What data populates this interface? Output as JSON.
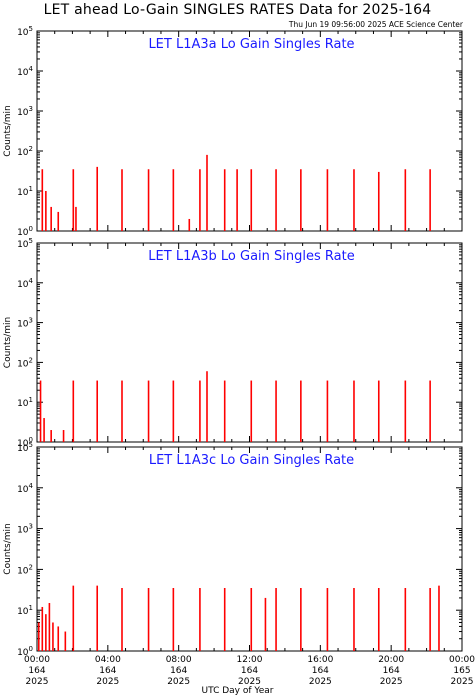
{
  "title": "LET ahead Lo-Gain SINGLES RATES Data for 2025-164",
  "timestamp": "Thu Jun 19 09:56:00 2025 ACE Science Center",
  "colors": {
    "data": "#ff0000",
    "panel_title": "#1a1aff",
    "axis": "#000000"
  },
  "chart_data": [
    {
      "type": "bar",
      "title": "LET L1A3a Lo Gain Singles Rate",
      "ylabel": "Counts/min",
      "yscale": "log",
      "ylim": [
        1,
        100000
      ],
      "xlim_hours": [
        0,
        24
      ],
      "spikes": [
        {
          "x": 0.3,
          "y": 35
        },
        {
          "x": 0.5,
          "y": 10
        },
        {
          "x": 0.8,
          "y": 4
        },
        {
          "x": 1.2,
          "y": 3
        },
        {
          "x": 2.05,
          "y": 35
        },
        {
          "x": 2.2,
          "y": 4
        },
        {
          "x": 3.4,
          "y": 40
        },
        {
          "x": 4.8,
          "y": 35
        },
        {
          "x": 6.3,
          "y": 35
        },
        {
          "x": 7.7,
          "y": 35
        },
        {
          "x": 8.6,
          "y": 2
        },
        {
          "x": 9.2,
          "y": 35
        },
        {
          "x": 9.6,
          "y": 80
        },
        {
          "x": 10.6,
          "y": 35
        },
        {
          "x": 11.3,
          "y": 35
        },
        {
          "x": 12.1,
          "y": 35
        },
        {
          "x": 13.5,
          "y": 35
        },
        {
          "x": 14.9,
          "y": 35
        },
        {
          "x": 16.4,
          "y": 35
        },
        {
          "x": 17.9,
          "y": 35
        },
        {
          "x": 19.3,
          "y": 30
        },
        {
          "x": 20.8,
          "y": 35
        },
        {
          "x": 22.2,
          "y": 35
        }
      ]
    },
    {
      "type": "bar",
      "title": "LET L1A3b Lo Gain Singles Rate",
      "ylabel": "Counts/min",
      "yscale": "log",
      "ylim": [
        1,
        100000
      ],
      "xlim_hours": [
        0,
        24
      ],
      "spikes": [
        {
          "x": 0.2,
          "y": 35
        },
        {
          "x": 0.4,
          "y": 4
        },
        {
          "x": 0.8,
          "y": 2
        },
        {
          "x": 1.5,
          "y": 2
        },
        {
          "x": 2.05,
          "y": 35
        },
        {
          "x": 3.4,
          "y": 35
        },
        {
          "x": 4.8,
          "y": 35
        },
        {
          "x": 6.3,
          "y": 35
        },
        {
          "x": 7.7,
          "y": 35
        },
        {
          "x": 9.2,
          "y": 35
        },
        {
          "x": 9.6,
          "y": 60
        },
        {
          "x": 10.6,
          "y": 35
        },
        {
          "x": 12.1,
          "y": 35
        },
        {
          "x": 13.5,
          "y": 35
        },
        {
          "x": 14.9,
          "y": 35
        },
        {
          "x": 16.4,
          "y": 35
        },
        {
          "x": 17.9,
          "y": 35
        },
        {
          "x": 19.3,
          "y": 35
        },
        {
          "x": 20.8,
          "y": 35
        },
        {
          "x": 22.2,
          "y": 35
        }
      ]
    },
    {
      "type": "bar",
      "title": "LET L1A3c Lo Gain Singles Rate",
      "ylabel": "Counts/min",
      "yscale": "log",
      "ylim": [
        1,
        100000
      ],
      "xlim_hours": [
        0,
        24
      ],
      "spikes": [
        {
          "x": 0.1,
          "y": 5
        },
        {
          "x": 0.3,
          "y": 12
        },
        {
          "x": 0.5,
          "y": 8
        },
        {
          "x": 0.7,
          "y": 15
        },
        {
          "x": 0.9,
          "y": 5
        },
        {
          "x": 1.2,
          "y": 4
        },
        {
          "x": 1.6,
          "y": 3
        },
        {
          "x": 2.05,
          "y": 40
        },
        {
          "x": 3.4,
          "y": 40
        },
        {
          "x": 4.8,
          "y": 35
        },
        {
          "x": 6.3,
          "y": 35
        },
        {
          "x": 7.7,
          "y": 35
        },
        {
          "x": 9.2,
          "y": 35
        },
        {
          "x": 10.6,
          "y": 35
        },
        {
          "x": 12.1,
          "y": 35
        },
        {
          "x": 12.9,
          "y": 20
        },
        {
          "x": 13.5,
          "y": 35
        },
        {
          "x": 14.9,
          "y": 35
        },
        {
          "x": 16.4,
          "y": 35
        },
        {
          "x": 17.9,
          "y": 35
        },
        {
          "x": 19.3,
          "y": 35
        },
        {
          "x": 20.8,
          "y": 35
        },
        {
          "x": 22.2,
          "y": 35
        },
        {
          "x": 22.7,
          "y": 40
        }
      ]
    }
  ],
  "ytick_labels": [
    "10",
    "10",
    "10",
    "10",
    "10",
    "10"
  ],
  "ytick_exponents": [
    "0",
    "1",
    "2",
    "3",
    "4",
    "5"
  ],
  "xticks": [
    {
      "time": "00:00",
      "day": "164",
      "year": "2025"
    },
    {
      "time": "04:00",
      "day": "164",
      "year": "2025"
    },
    {
      "time": "08:00",
      "day": "164",
      "year": "2025"
    },
    {
      "time": "12:00",
      "day": "164",
      "year": "2025"
    },
    {
      "time": "16:00",
      "day": "164",
      "year": "2025"
    },
    {
      "time": "20:00",
      "day": "164",
      "year": "2025"
    },
    {
      "time": "00:00",
      "day": "165",
      "year": "2025"
    }
  ],
  "xlabel": "UTC Day of Year"
}
